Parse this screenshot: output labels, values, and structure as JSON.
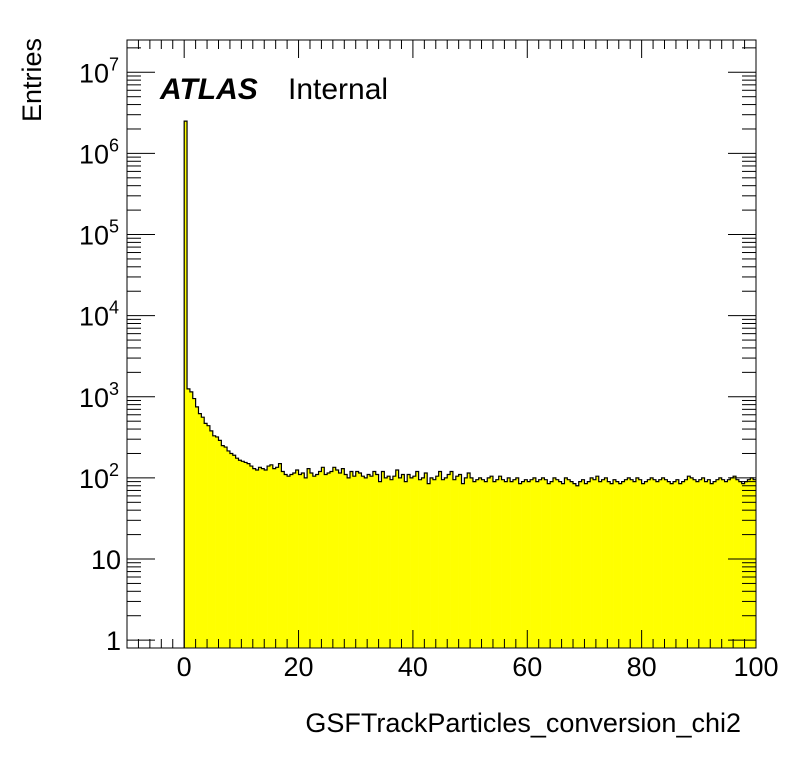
{
  "chart_data": {
    "type": "bar",
    "histogram": true,
    "xlabel": "GSFTrackParticles_conversion_chi2",
    "ylabel": "Entries",
    "xlim": [
      -10,
      100
    ],
    "ylim": [
      0.8,
      25000000
    ],
    "yscale": "log",
    "grid": false,
    "fill_color": "#ffff00",
    "line_color": "#000000",
    "x_ticks": [
      "0",
      "20",
      "40",
      "60",
      "80",
      "100"
    ],
    "y_ticks": [
      {
        "base": "1",
        "exp": ""
      },
      {
        "base": "10",
        "exp": ""
      },
      {
        "base": "10",
        "exp": "2"
      },
      {
        "base": "10",
        "exp": "3"
      },
      {
        "base": "10",
        "exp": "4"
      },
      {
        "base": "10",
        "exp": "5"
      },
      {
        "base": "10",
        "exp": "6"
      },
      {
        "base": "10",
        "exp": "7"
      }
    ],
    "annotations": {
      "atlas": "ATLAS",
      "status": "Internal"
    },
    "bin_edges_start": 0,
    "bin_width": 1,
    "values": [
      2500000,
      1250,
      1150,
      950,
      750,
      620,
      560,
      470,
      440,
      380,
      330,
      320,
      290,
      250,
      240,
      215,
      200,
      190,
      175,
      165,
      160,
      155,
      150,
      140,
      130,
      125,
      135,
      130,
      125,
      140,
      145,
      130,
      135,
      150,
      120,
      110,
      105,
      110,
      115,
      125,
      110,
      115,
      100,
      130,
      115,
      105,
      110,
      120,
      135,
      110,
      115,
      120,
      135,
      125,
      115,
      130,
      110,
      100,
      120,
      105,
      120,
      115,
      105,
      100,
      110,
      105,
      120,
      110,
      90,
      120,
      100,
      105,
      95,
      105,
      125,
      100,
      110,
      90,
      110,
      100,
      105,
      120,
      95,
      100,
      115,
      85,
      100,
      95,
      105,
      120,
      95,
      100,
      110,
      120,
      95,
      105,
      110,
      85,
      100,
      115,
      100,
      90,
      95,
      100,
      95,
      90,
      100,
      105,
      90,
      95,
      105,
      95,
      90,
      100,
      90,
      95,
      100,
      85,
      90,
      95,
      90,
      95,
      100,
      90,
      95,
      100,
      95,
      85,
      90,
      100,
      95,
      90,
      85,
      100,
      95,
      90,
      85,
      80,
      90,
      95,
      85,
      90,
      100,
      95,
      105,
      90,
      95,
      100,
      90,
      85,
      95,
      90,
      85,
      90,
      95,
      100,
      95,
      90,
      100,
      95,
      85,
      90,
      95,
      100,
      95,
      90,
      95,
      100,
      95,
      90,
      85,
      90,
      95,
      85,
      90,
      95,
      105,
      100,
      95,
      90,
      95,
      100,
      90,
      95,
      85,
      90,
      95,
      100,
      95,
      90,
      95,
      100,
      105,
      95,
      90,
      85,
      90,
      95,
      100,
      95
    ]
  }
}
